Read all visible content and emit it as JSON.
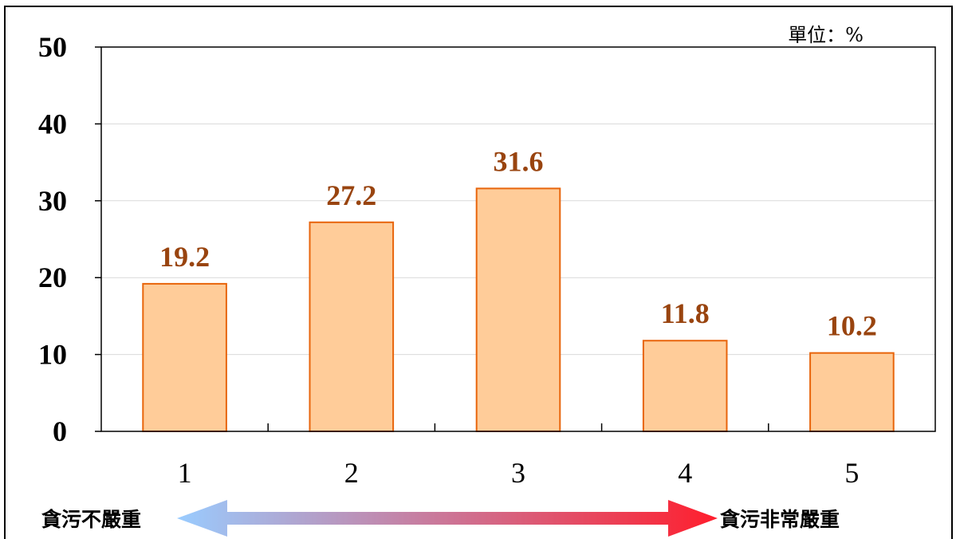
{
  "chart_data": {
    "type": "bar",
    "categories": [
      "1",
      "2",
      "3",
      "4",
      "5"
    ],
    "values": [
      19.2,
      27.2,
      31.6,
      11.8,
      10.2
    ],
    "value_labels": [
      "19.2",
      "27.2",
      "31.6",
      "11.8",
      "10.2"
    ],
    "ylim": [
      0,
      50
    ],
    "yticks": [
      0,
      10,
      20,
      30,
      40,
      50
    ],
    "ytick_labels": [
      "0",
      "10",
      "20",
      "30",
      "40",
      "50"
    ],
    "unit": "單位：%",
    "grid": true,
    "bar_color": "#FFCC99",
    "bar_edge_color": "#E8650C",
    "label_color": "#99440F",
    "scale_left": "貪污不嚴重",
    "scale_right": "貪污非常嚴重",
    "arrow_colors": [
      "#99CCFF",
      "#FF1E2D"
    ]
  }
}
